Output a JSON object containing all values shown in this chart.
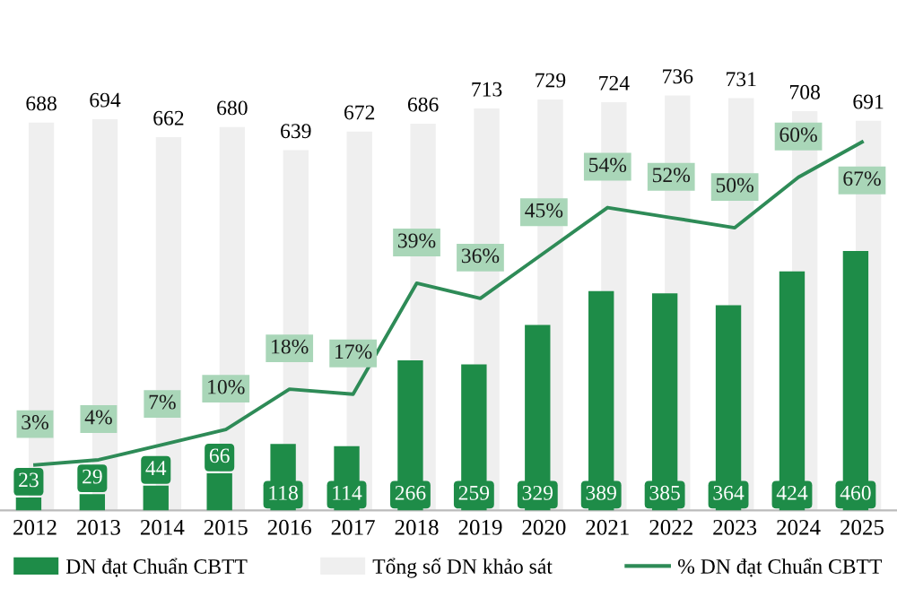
{
  "chart_data": {
    "type": "bar",
    "categories": [
      "2012",
      "2013",
      "2014",
      "2015",
      "2016",
      "2017",
      "2018",
      "2019",
      "2020",
      "2021",
      "2022",
      "2023",
      "2024",
      "2025"
    ],
    "series": [
      {
        "name": "DN đạt Chuẩn CBTT",
        "color": "#1e8c48",
        "values": [
          23,
          29,
          44,
          66,
          118,
          114,
          266,
          259,
          329,
          389,
          385,
          364,
          424,
          460
        ]
      },
      {
        "name": "Tổng số DN khảo sát",
        "color": "#efefef",
        "values": [
          688,
          694,
          662,
          680,
          639,
          672,
          686,
          713,
          729,
          724,
          736,
          731,
          708,
          691
        ]
      },
      {
        "name": "% DN đạt Chuẩn CBTT",
        "type": "line",
        "axis": "y2",
        "color": "#2e8b57",
        "values": [
          3,
          4,
          7,
          10,
          18,
          17,
          39,
          36,
          45,
          54,
          52,
          50,
          60,
          67
        ],
        "value_labels": [
          "3%",
          "4%",
          "7%",
          "10%",
          "18%",
          "17%",
          "39%",
          "36%",
          "45%",
          "54%",
          "52%",
          "50%",
          "60%",
          "67%"
        ]
      }
    ],
    "data_labels": true,
    "tick_labels": "x",
    "grid": false,
    "legend": "bottom",
    "marker": "none",
    "line_style": "solid"
  }
}
